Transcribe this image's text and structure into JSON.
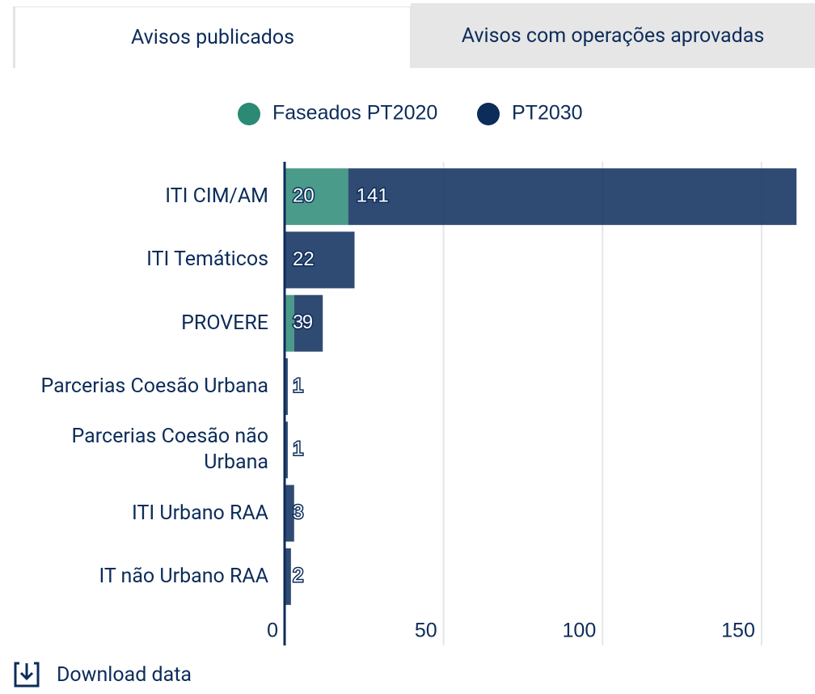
{
  "tabs": [
    "Avisos publicados",
    "Avisos com operações aprovadas"
  ],
  "download": "Download data",
  "chart_data": {
    "type": "stacked-bar-horizontal",
    "categories": [
      "ITI CIM/AM",
      "ITI Temáticos",
      "PROVERE",
      "Parcerias Coesão Urbana",
      "Parcerias Coesão não Urbana",
      "ITI Urbano RAA",
      "IT não Urbano RAA"
    ],
    "series": [
      {
        "name": "Faseados PT2020",
        "color": "#2a8a74",
        "values": [
          20,
          null,
          3,
          null,
          null,
          null,
          null
        ]
      },
      {
        "name": "PT2030",
        "color": "#0c2c5a",
        "values": [
          141,
          22,
          9,
          1,
          1,
          3,
          2
        ]
      }
    ],
    "xlim": [
      0,
      163
    ],
    "xticks": [
      0,
      50,
      100,
      150
    ],
    "grid": true,
    "legend": "top"
  }
}
